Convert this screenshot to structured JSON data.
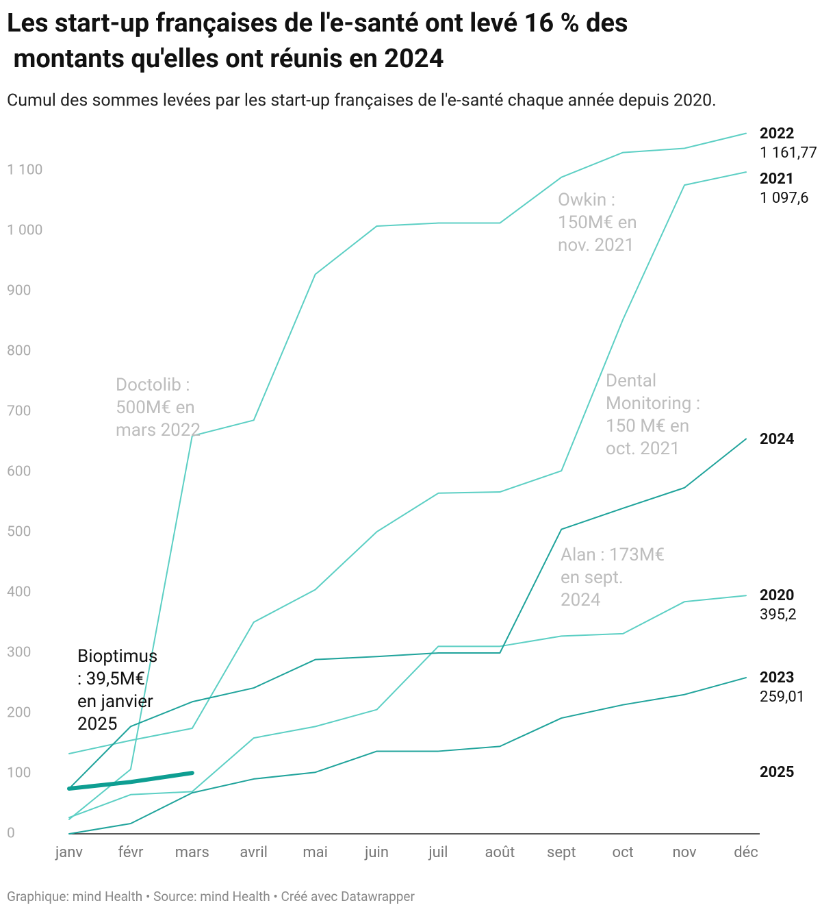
{
  "chart_data": {
    "type": "line",
    "title": "Les start-up françaises de l'e-santé ont levé 16 % des montants qu'elles ont réunis en 2024",
    "subtitle": "Cumul des sommes levées par les start-up françaises de l'e-santé chaque année depuis 2020.",
    "footer": "Graphique: mind Health • Source: mind Health • Créé avec Datawrapper",
    "categories": [
      "janv",
      "févr",
      "mars",
      "avril",
      "mai",
      "juin",
      "juil",
      "août",
      "sept",
      "oct",
      "nov",
      "déc"
    ],
    "ylim": [
      0,
      1100
    ],
    "yticks": [
      0,
      100,
      200,
      300,
      400,
      500,
      600,
      700,
      800,
      900,
      {
        "value": 1000,
        "label": "1 000"
      },
      {
        "value": 1100,
        "label": "1 100"
      }
    ],
    "series": [
      {
        "name": "2020",
        "color": "#5ccfc4",
        "values": [
          27,
          65,
          70,
          159,
          178,
          206,
          311,
          311,
          328,
          332,
          385,
          395.2
        ],
        "value_labels": [
          null,
          null,
          null,
          null,
          null,
          null,
          null,
          null,
          null,
          null,
          null,
          "395,2"
        ]
      },
      {
        "name": "2021",
        "color": "#5ccfc4",
        "values": [
          133,
          155,
          175,
          351,
          405,
          501,
          565,
          567,
          602,
          853,
          1076,
          1097.6
        ],
        "value_labels": [
          null,
          null,
          null,
          null,
          null,
          null,
          null,
          null,
          null,
          null,
          null,
          "1 097,6"
        ]
      },
      {
        "name": "2022",
        "color": "#5ccfc4",
        "values": [
          24,
          107,
          660,
          686,
          928,
          1008,
          1013,
          1013,
          1089,
          1130,
          1137,
          1161.77
        ],
        "value_labels": [
          null,
          null,
          null,
          null,
          null,
          null,
          null,
          null,
          null,
          null,
          null,
          "1 161,77"
        ]
      },
      {
        "name": "2023",
        "color": "#1fa39b",
        "values": [
          0,
          17,
          68,
          91,
          102,
          137,
          137,
          145,
          192,
          214,
          231,
          259.01
        ],
        "value_labels": [
          null,
          null,
          null,
          null,
          null,
          null,
          null,
          null,
          null,
          null,
          null,
          "259,01"
        ]
      },
      {
        "name": "2024",
        "color": "#1fa39b",
        "values": [
          75,
          178,
          219,
          242,
          289,
          294,
          300,
          300,
          505,
          540,
          574,
          655
        ]
      },
      {
        "name": "2025",
        "color": "#0e9e92",
        "values": [
          75,
          86,
          101,
          null,
          null,
          null,
          null,
          null,
          null,
          null,
          null,
          null
        ]
      }
    ],
    "annotations": [
      "Owkin : 150M€ en nov. 2021",
      "Doctolib : 500M€ en mars 2022",
      "Dental Monitoring : 150 M€ en oct. 2021",
      "Alan : 173M€ en sept. 2024",
      "Bioptimus : 39,5M€ en janvier 2025"
    ]
  }
}
